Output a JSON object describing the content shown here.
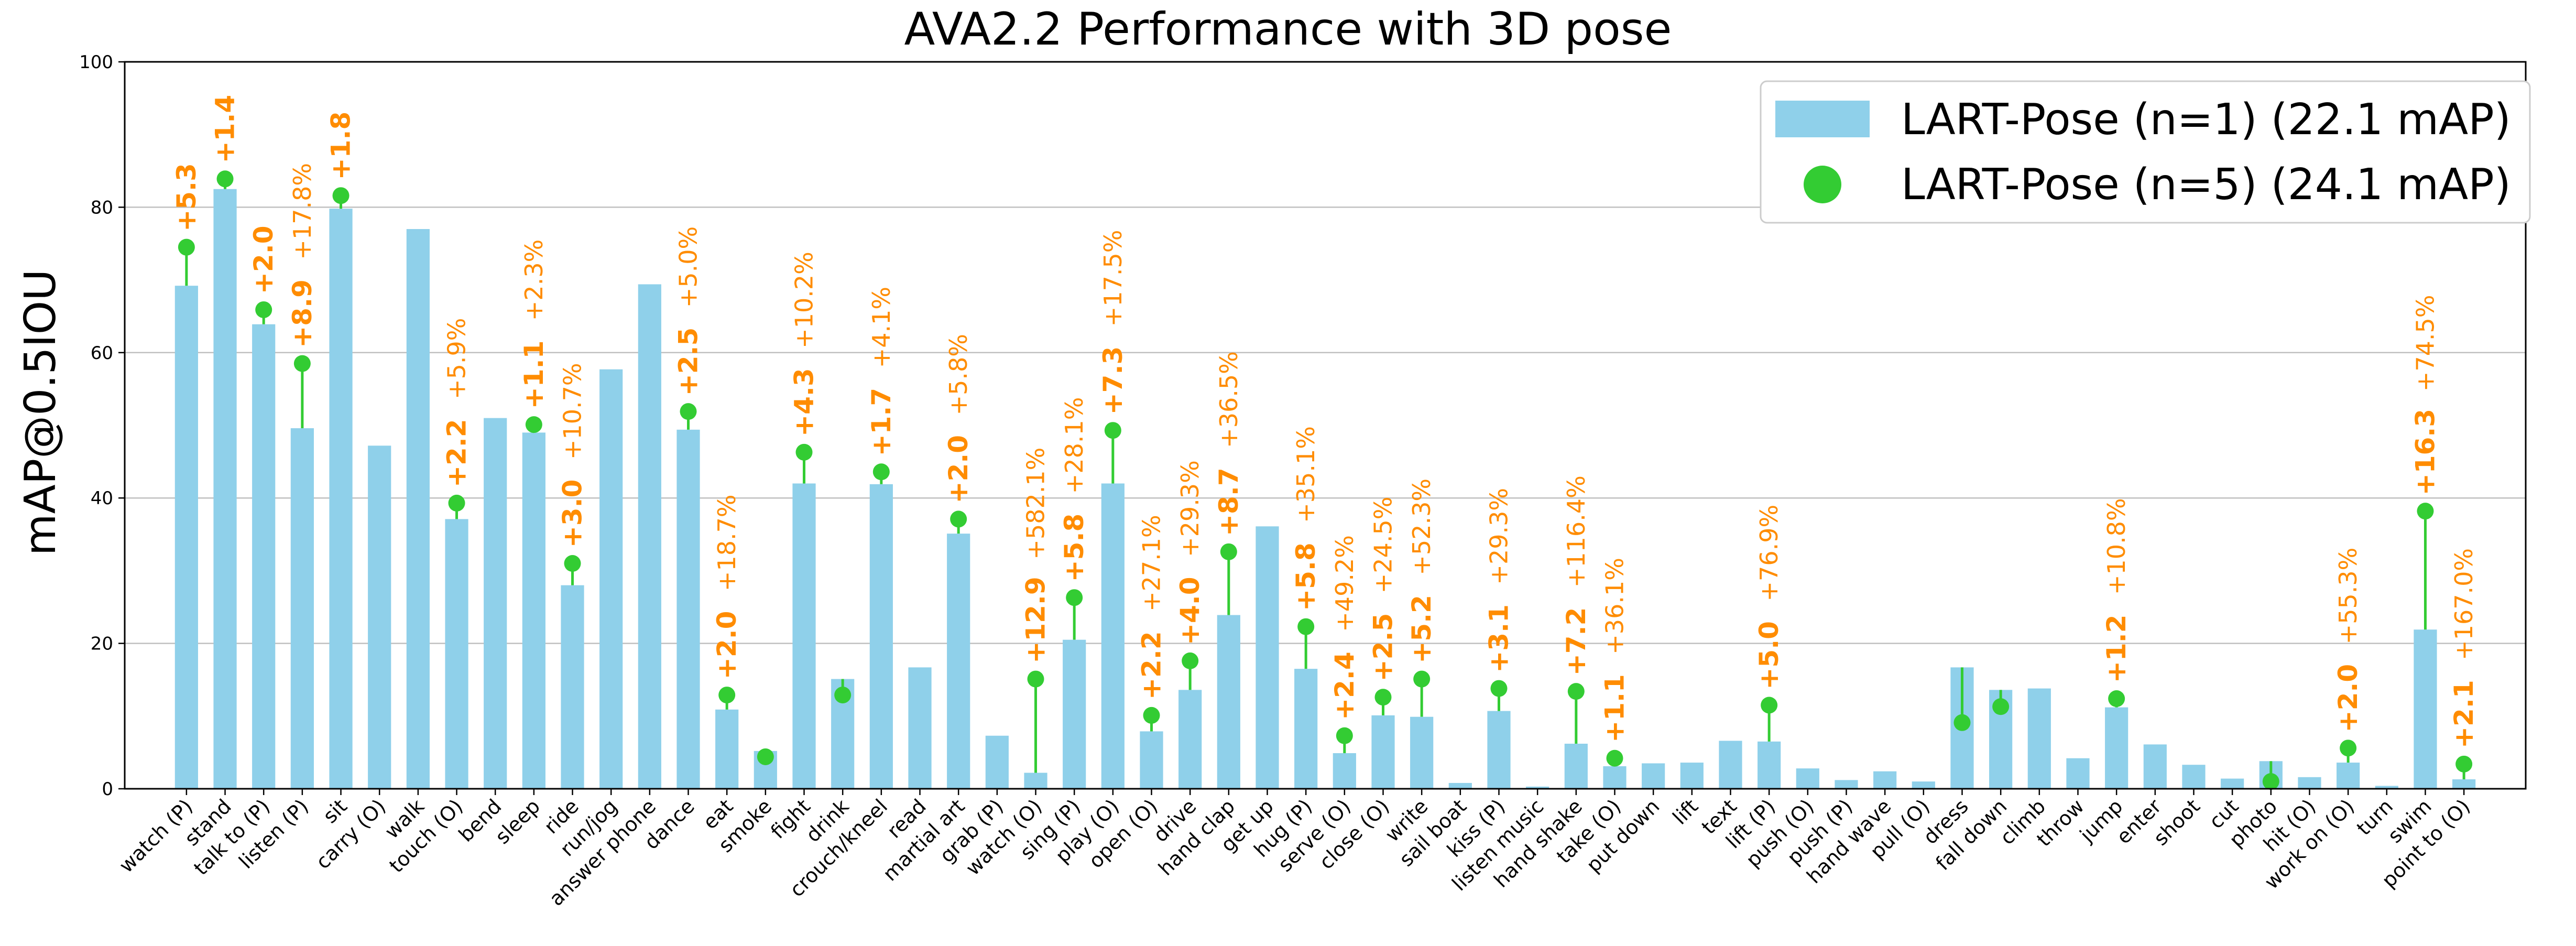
{
  "chart_data": {
    "type": "bar",
    "title": "AVA2.2 Performance with 3D pose",
    "xlabel": "",
    "ylabel": "mAP@0.5IOU",
    "ylim": [
      0,
      100
    ],
    "yticks": [
      "0",
      "20",
      "40",
      "60",
      "80",
      "100"
    ],
    "grid": true,
    "legend_position": "top-right",
    "colors": {
      "bar": "#8fd0ea",
      "dot": "#33cc33",
      "gain": "#ff8c00",
      "grid": "#c0c0c0"
    },
    "series": [
      {
        "name": "LART-Pose (n=1) (22.1 mAP)",
        "kind": "bar"
      },
      {
        "name": "LART-Pose (n=5) (24.1 mAP)",
        "kind": "dot"
      }
    ],
    "categories": [
      "watch (P)",
      "stand",
      "talk to (P)",
      "listen (P)",
      "sit",
      "carry (O)",
      "walk",
      "touch (O)",
      "bend",
      "sleep",
      "ride",
      "run/jog",
      "answer phone",
      "dance",
      "eat",
      "smoke",
      "fight",
      "drink",
      "crouch/kneel",
      "read",
      "martial art",
      "grab (P)",
      "watch (O)",
      "sing (P)",
      "play (O)",
      "open (O)",
      "drive",
      "hand clap",
      "get up",
      "hug (P)",
      "serve (O)",
      "close (O)",
      "write",
      "sail boat",
      "kiss (P)",
      "listen music",
      "hand shake",
      "take (O)",
      "put down",
      "lift",
      "text",
      "lift (P)",
      "push (O)",
      "push (P)",
      "hand wave",
      "pull (O)",
      "dress",
      "fall down",
      "climb",
      "throw",
      "jump",
      "enter",
      "shoot",
      "cut",
      "photo",
      "hit (O)",
      "work on (O)",
      "turn",
      "swim",
      "point to (O)"
    ],
    "n1_values": [
      69.2,
      82.5,
      63.9,
      49.6,
      79.8,
      47.2,
      77.0,
      37.1,
      51.0,
      49.0,
      28.0,
      57.7,
      69.4,
      49.4,
      10.9,
      5.2,
      42.0,
      15.1,
      41.9,
      16.7,
      35.1,
      7.3,
      2.2,
      20.5,
      42.0,
      7.9,
      13.6,
      23.9,
      36.1,
      16.5,
      4.9,
      10.1,
      9.9,
      0.8,
      10.7,
      0.3,
      6.2,
      3.1,
      3.5,
      3.6,
      6.6,
      6.5,
      2.8,
      1.2,
      2.4,
      1.0,
      16.7,
      13.6,
      13.8,
      4.2,
      11.2,
      6.1,
      3.3,
      1.4,
      3.8,
      1.6,
      3.6,
      0.4,
      21.9,
      1.3
    ],
    "n5_values": [
      74.5,
      83.9,
      65.9,
      58.5,
      81.6,
      null,
      null,
      39.3,
      null,
      50.1,
      31.0,
      null,
      null,
      51.9,
      12.9,
      4.4,
      46.3,
      12.9,
      43.6,
      null,
      37.1,
      null,
      15.1,
      26.3,
      49.3,
      10.1,
      17.6,
      32.6,
      null,
      22.3,
      7.3,
      12.6,
      15.1,
      null,
      13.8,
      null,
      13.4,
      4.2,
      null,
      null,
      null,
      11.5,
      null,
      null,
      null,
      null,
      9.1,
      11.3,
      null,
      null,
      12.4,
      null,
      null,
      null,
      1.0,
      null,
      5.6,
      null,
      38.2,
      3.4
    ],
    "gain_abs": [
      "+5.3",
      "+1.4",
      "+2.0",
      "+8.9",
      "+1.8",
      "",
      "",
      "+2.2",
      "",
      "+1.1",
      "+3.0",
      "",
      "",
      "+2.5",
      "+2.0",
      "",
      "+4.3",
      "",
      "+1.7",
      "",
      "+2.0",
      "",
      "+12.9",
      "+5.8",
      "+7.3",
      "+2.2",
      "+4.0",
      "+8.7",
      "",
      "+5.8",
      "+2.4",
      "+2.5",
      "+5.2",
      "",
      "+3.1",
      "",
      "+7.2",
      "+1.1",
      "",
      "",
      "",
      "+5.0",
      "",
      "",
      "",
      "",
      "",
      "",
      "",
      "",
      "+1.2",
      "",
      "",
      "",
      "",
      "",
      "+2.0",
      "",
      "+16.3",
      "+2.1"
    ],
    "gain_rel": [
      "",
      "",
      "",
      "+17.8%",
      "",
      "",
      "",
      "+5.9%",
      "",
      "+2.3%",
      "+10.7%",
      "",
      "",
      "+5.0%",
      "+18.7%",
      "",
      "+10.2%",
      "",
      "+4.1%",
      "",
      "+5.8%",
      "",
      "+582.1%",
      "+28.1%",
      "+17.5%",
      "+27.1%",
      "+29.3%",
      "+36.5%",
      "",
      "+35.1%",
      "+49.2%",
      "+24.5%",
      "+52.3%",
      "",
      "+29.3%",
      "",
      "+116.4%",
      "+36.1%",
      "",
      "",
      "",
      "+76.9%",
      "",
      "",
      "",
      "",
      "",
      "",
      "",
      "",
      "+10.8%",
      "",
      "",
      "",
      "",
      "",
      "+55.3%",
      "",
      "+74.5%",
      "+167.0%"
    ]
  }
}
